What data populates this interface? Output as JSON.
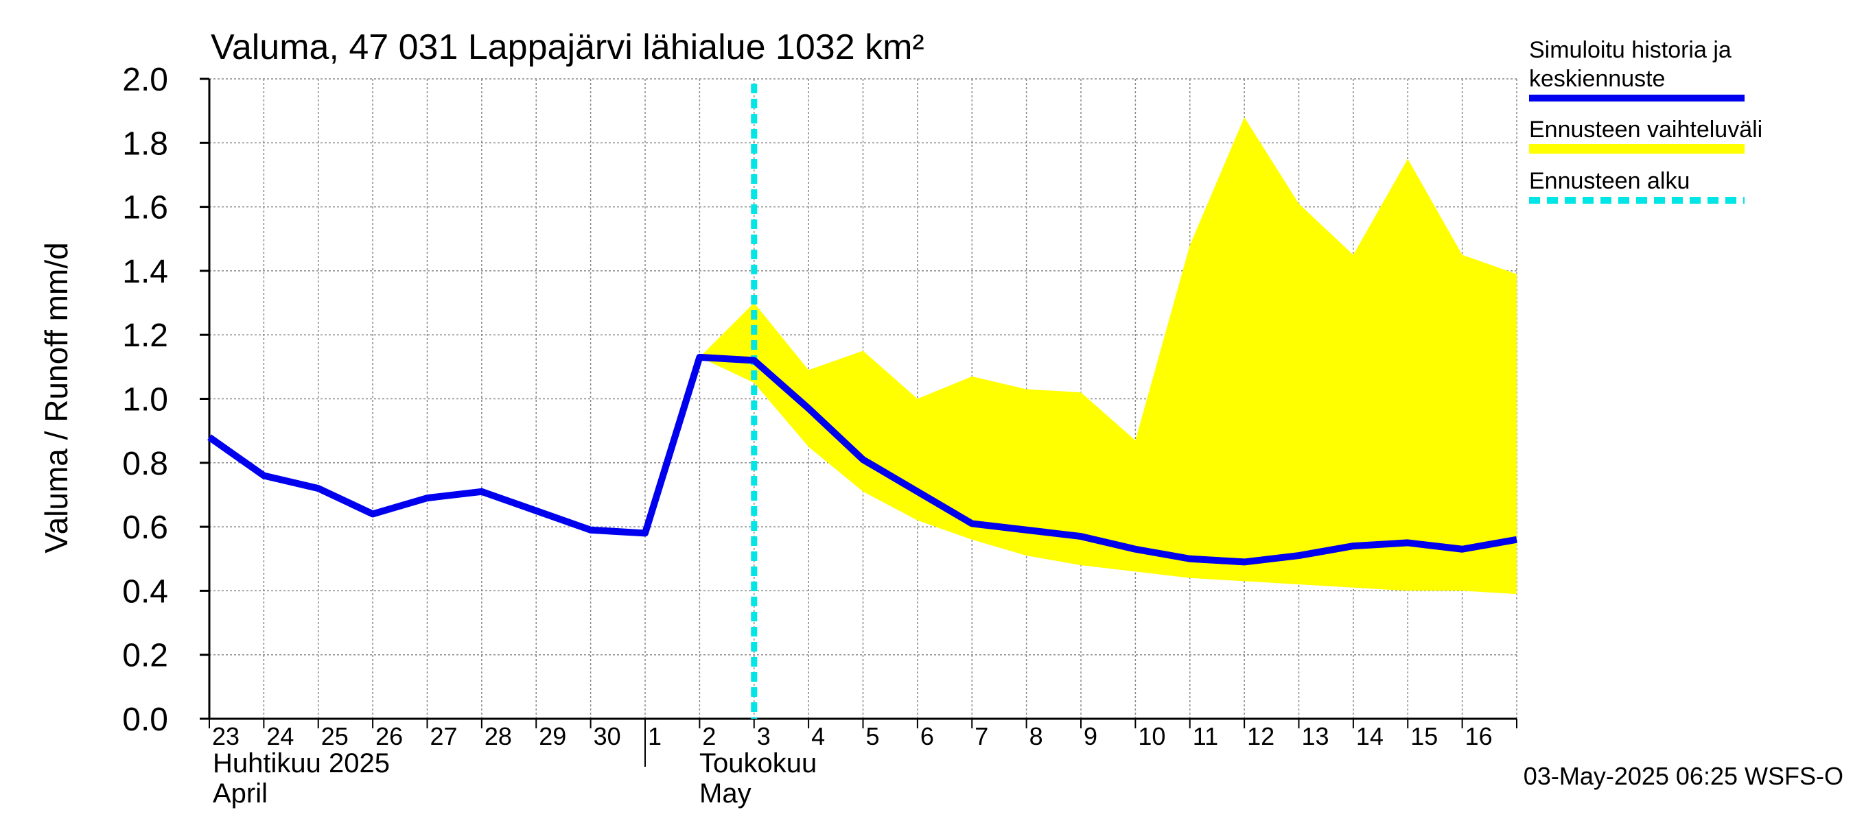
{
  "chart_data": {
    "type": "line",
    "title": "Valuma, 47 031 Lappajärvi lähialue 1032 km²",
    "ylabel": "Valuma / Runoff    mm/d",
    "ylim": [
      0.0,
      2.0
    ],
    "yticks": [
      "0.0",
      "0.2",
      "0.4",
      "0.6",
      "0.8",
      "1.0",
      "1.2",
      "1.4",
      "1.6",
      "1.8",
      "2.0"
    ],
    "xlim": [
      0,
      24
    ],
    "x_tick_labels": [
      "23",
      "24",
      "25",
      "26",
      "27",
      "28",
      "29",
      "30",
      "1",
      "2",
      "3",
      "4",
      "5",
      "6",
      "7",
      "8",
      "9",
      "10",
      "11",
      "12",
      "13",
      "14",
      "15",
      "16"
    ],
    "month_labels": {
      "april_fi": "Huhtikuu  2025",
      "april_en": "April",
      "may_fi": "Toukokuu",
      "may_en": "May"
    },
    "month_boundary_day": 8,
    "forecast_start_day": 10,
    "series": [
      {
        "name": "Simuloitu historia ja keskiennuste",
        "color": "#0000ee",
        "x": [
          0,
          1,
          2,
          3,
          4,
          5,
          6,
          7,
          8,
          9,
          10,
          11,
          12,
          13,
          14,
          15,
          16,
          17,
          18,
          19,
          20,
          21,
          22,
          23,
          24
        ],
        "values": [
          0.88,
          0.76,
          0.72,
          0.64,
          0.69,
          0.71,
          0.65,
          0.59,
          0.58,
          1.13,
          1.12,
          0.97,
          0.81,
          0.71,
          0.61,
          0.59,
          0.57,
          0.53,
          0.5,
          0.49,
          0.51,
          0.54,
          0.55,
          0.53,
          0.56
        ]
      }
    ],
    "band": {
      "name": "Ennusteen vaihteluväli",
      "color": "#ffff00",
      "x": [
        9,
        10,
        11,
        12,
        13,
        14,
        15,
        16,
        17,
        18,
        19,
        20,
        21,
        22,
        23,
        24
      ],
      "upper": [
        1.13,
        1.3,
        1.09,
        1.15,
        1.0,
        1.07,
        1.03,
        1.02,
        0.87,
        1.48,
        1.88,
        1.61,
        1.45,
        1.75,
        1.45,
        1.39
      ],
      "lower": [
        1.13,
        1.05,
        0.85,
        0.71,
        0.62,
        0.56,
        0.51,
        0.48,
        0.46,
        0.44,
        0.43,
        0.42,
        0.41,
        0.4,
        0.4,
        0.39
      ]
    },
    "legend": {
      "position": "right",
      "items": [
        {
          "label_line1": "Simuloitu historia ja",
          "label_line2": "keskiennuste",
          "color": "#0000ee",
          "style": "solid"
        },
        {
          "label_line1": "Ennusteen vaihteluväli",
          "color": "#ffff00",
          "style": "band"
        },
        {
          "label_line1": "Ennusteen alku",
          "color": "#00e5e5",
          "style": "dashed"
        }
      ]
    },
    "forecast_line_color": "#00e5e5",
    "grid": true,
    "footer": "03-May-2025 06:25 WSFS-O"
  }
}
